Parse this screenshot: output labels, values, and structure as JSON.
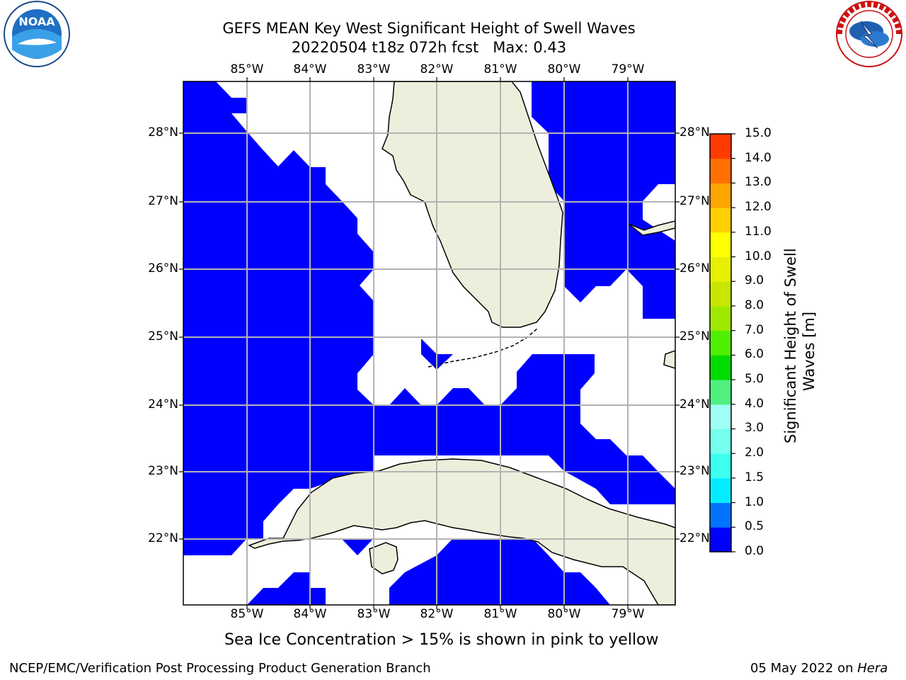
{
  "title_line1": "GEFS MEAN Key West Significant Height of Swell Waves",
  "title_line2": "20220504 t18z 072h fcst   Max: 0.43",
  "lon_labels": [
    "85°W",
    "84°W",
    "83°W",
    "82°W",
    "81°W",
    "80°W",
    "79°W"
  ],
  "lat_labels": [
    "28°N",
    "27°N",
    "26°N",
    "25°N",
    "24°N",
    "23°N",
    "22°N"
  ],
  "colorbar": {
    "label_line1": "Significant Height of Swell",
    "label_line2": "Waves [m]",
    "ticks": [
      "0.0",
      "0.5",
      "1.0",
      "1.5",
      "2.0",
      "3.0",
      "4.0",
      "5.0",
      "6.0",
      "7.0",
      "8.0",
      "9.0",
      "10.0",
      "11.0",
      "12.0",
      "13.0",
      "14.0",
      "15.0"
    ],
    "colors": [
      "#0000ff",
      "#0074ff",
      "#00eeff",
      "#3cfff0",
      "#74ffef",
      "#a0fff4",
      "#50f080",
      "#00dc00",
      "#50ee00",
      "#a0e800",
      "#c8e600",
      "#e6f000",
      "#ffff00",
      "#ffd000",
      "#ffa500",
      "#ff7000",
      "#ff3c00",
      "#ff0000"
    ]
  },
  "map": {
    "ocean_fill": "#0000ff",
    "land_fill": "#eeeedd",
    "grid_color": "#b3b3b3"
  },
  "sea_ice_note": "Sea Ice Concentration > 15% is shown in pink to yellow",
  "footer_left": "NCEP/EMC/Verification Post Processing Product Generation Branch",
  "footer_right_prefix": "05 May 2022 on ",
  "footer_right_host": "Hera",
  "noaa_logo_text": "NOAA",
  "nws_logo_text": "NATIONAL WEATHER SERVICE"
}
